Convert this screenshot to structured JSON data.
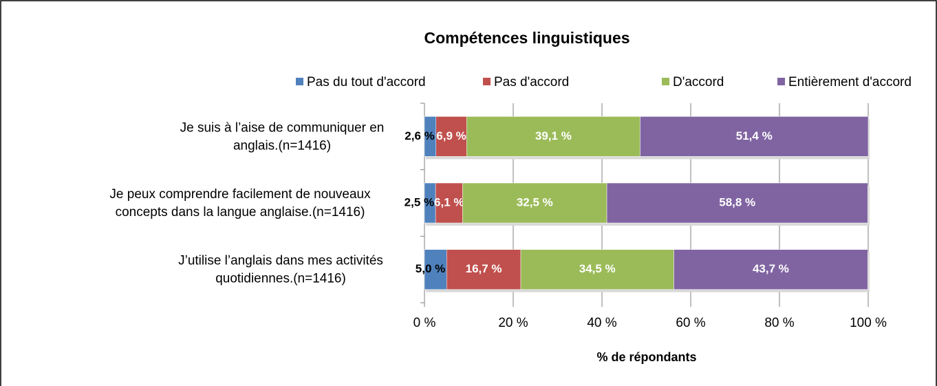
{
  "chart_data": {
    "type": "stacked-bar-horizontal",
    "title": "Compétences linguistiques",
    "x_label": "% de répondants",
    "categories": [
      [
        "Je suis à l’aise de communiquer en",
        "anglais.(n=1416)"
      ],
      [
        "Je peux comprendre facilement de nouveaux",
        "concepts dans la langue anglaise.(n=1416)"
      ],
      [
        "J’utilise l’anglais dans mes activités",
        "quotidiennes.(n=1416)"
      ]
    ],
    "series": [
      {
        "name": "Pas du tout d'accord",
        "color": "#4f81bd",
        "label_color": "#000000",
        "values": [
          2.6,
          2.5,
          5.0
        ],
        "value_labels": [
          "2,6 %",
          "2,5 %",
          "5,0 %"
        ]
      },
      {
        "name": "Pas d'accord",
        "color": "#c0504d",
        "label_color": "#ffffff",
        "values": [
          6.9,
          6.1,
          16.7
        ],
        "value_labels": [
          "6,9 %",
          "6,1 %",
          "16,7 %"
        ]
      },
      {
        "name": "D'accord",
        "color": "#9bbb59",
        "label_color": "#ffffff",
        "values": [
          39.1,
          32.5,
          34.5
        ],
        "value_labels": [
          "39,1 %",
          "32,5 %",
          "34,5 %"
        ]
      },
      {
        "name": "Entièrement d'accord",
        "color": "#8064a2",
        "label_color": "#ffffff",
        "values": [
          51.4,
          58.8,
          43.7
        ],
        "value_labels": [
          "51,4 %",
          "58,8 %",
          "43,7 %"
        ]
      }
    ],
    "xlim": [
      0,
      100
    ],
    "xticks": [
      {
        "value": 0,
        "label": "0 %"
      },
      {
        "value": 20,
        "label": "20 %"
      },
      {
        "value": 40,
        "label": "40 %"
      },
      {
        "value": 60,
        "label": "60 %"
      },
      {
        "value": 80,
        "label": "80 %"
      },
      {
        "value": 100,
        "label": "100 %"
      }
    ],
    "grid": true,
    "legend": "top"
  }
}
